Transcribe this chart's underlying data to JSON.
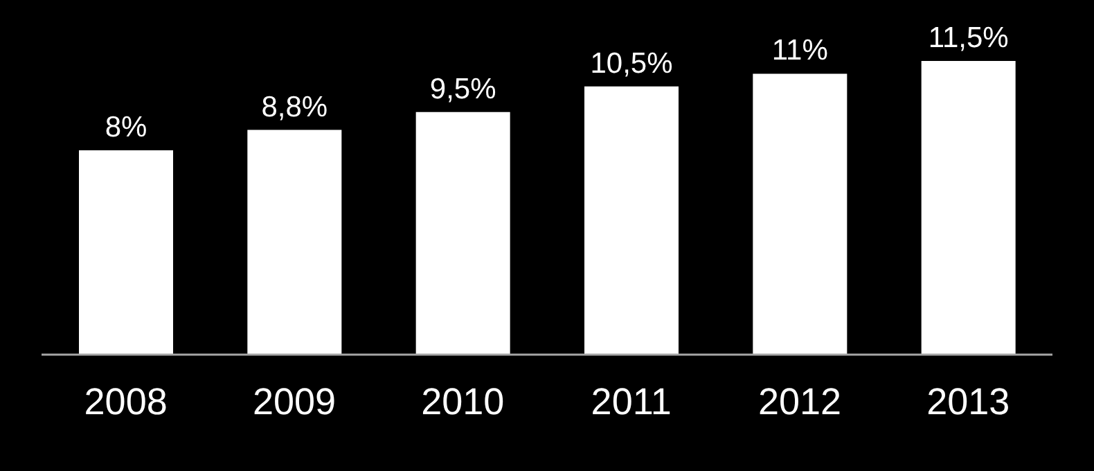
{
  "chart_data": {
    "type": "bar",
    "categories": [
      "2008",
      "2009",
      "2010",
      "2011",
      "2012",
      "2013"
    ],
    "values": [
      8,
      8.8,
      9.5,
      10.5,
      11,
      11.5
    ],
    "value_labels": [
      "8%",
      "8,8%",
      "9,5%",
      "10,5%",
      "11%",
      "11,5%"
    ],
    "color": "#ffffff",
    "tick_labels": "x",
    "grid": false,
    "legend": false
  }
}
